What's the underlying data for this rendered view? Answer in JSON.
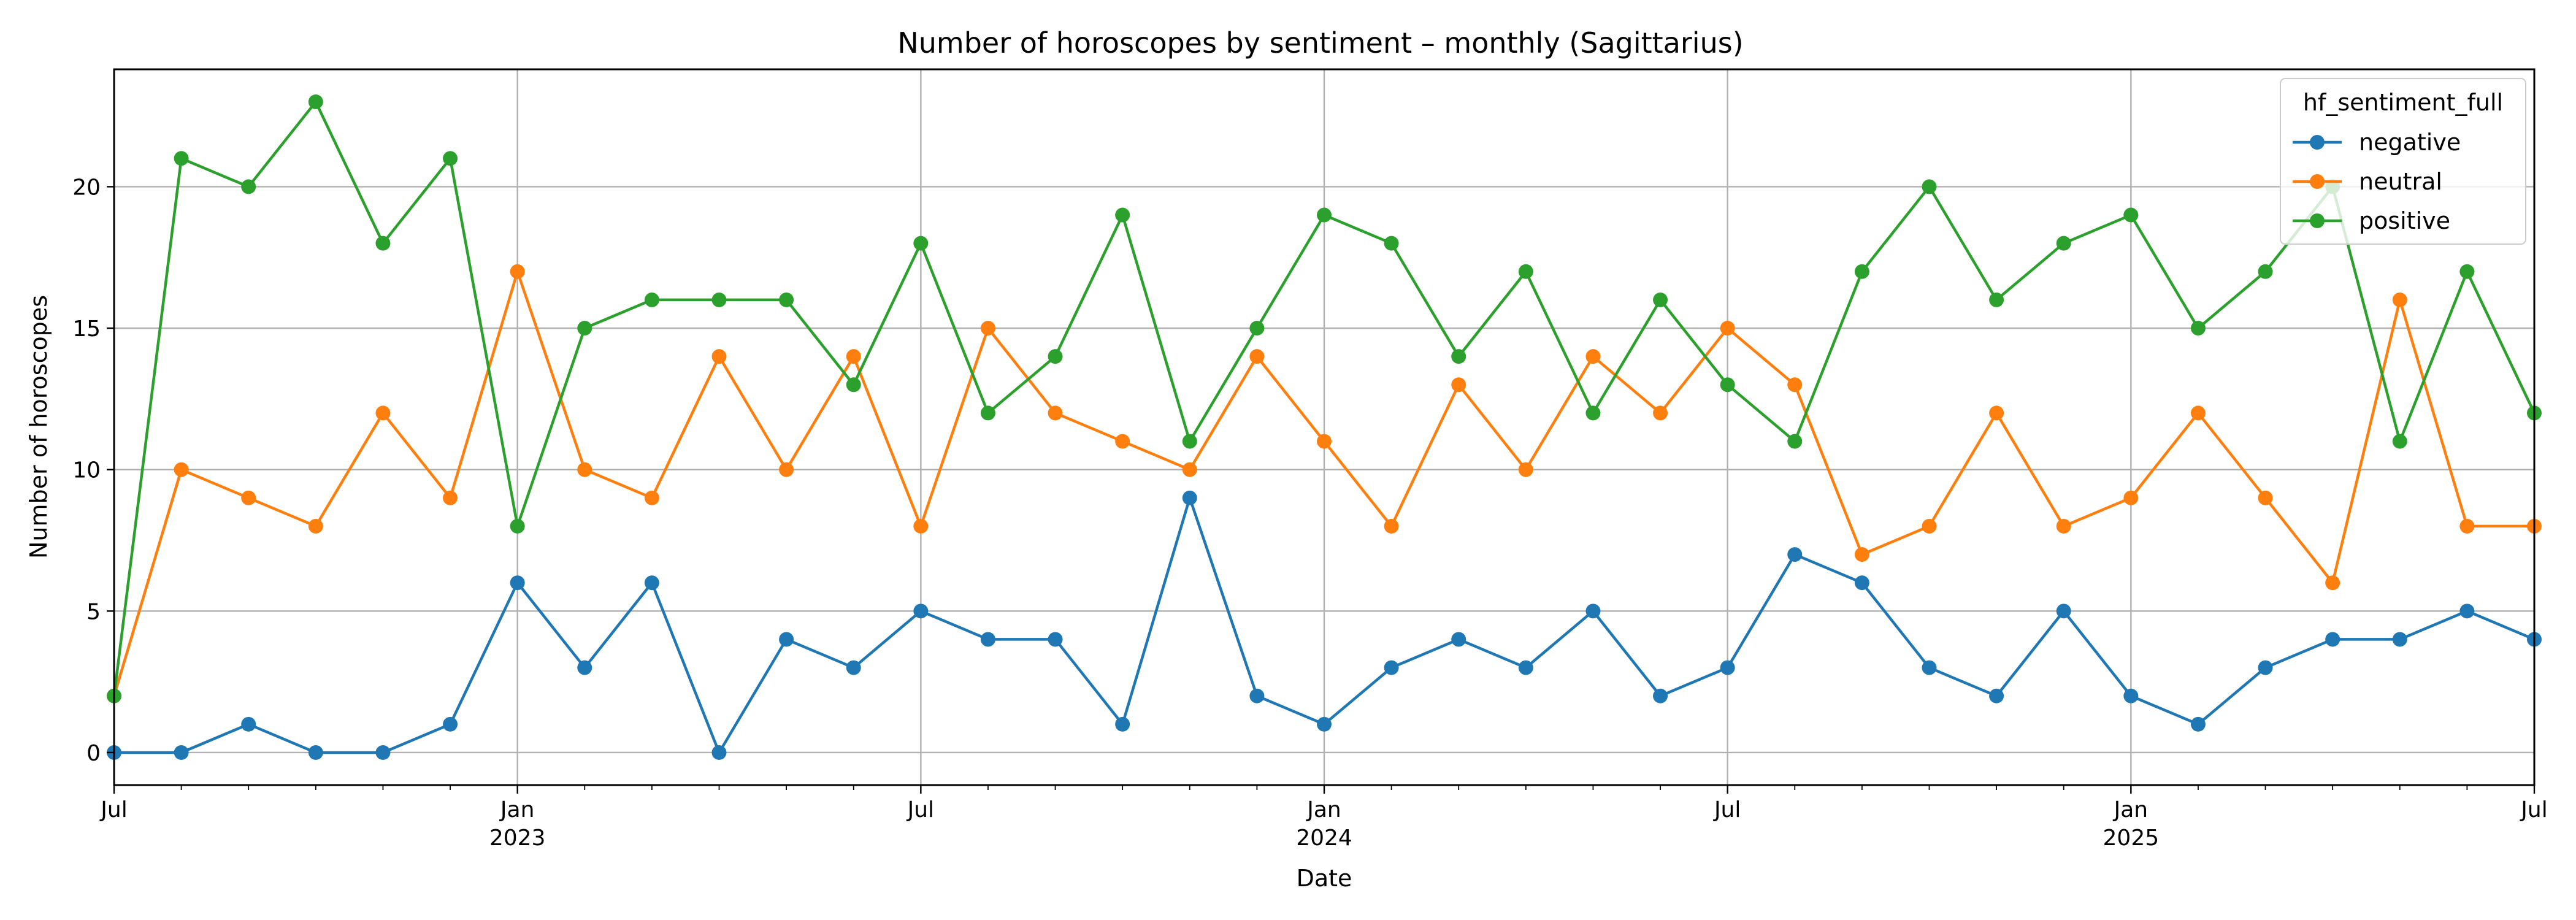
{
  "chart_data": {
    "type": "line",
    "title": "Number of horoscopes by sentiment – monthly (Sagittarius)",
    "xlabel": "Date",
    "ylabel": "Number of horoscopes",
    "x": [
      "2022-07",
      "2022-08",
      "2022-09",
      "2022-10",
      "2022-11",
      "2022-12",
      "2023-01",
      "2023-02",
      "2023-03",
      "2023-04",
      "2023-05",
      "2023-06",
      "2023-07",
      "2023-08",
      "2023-09",
      "2023-10",
      "2023-11",
      "2023-12",
      "2024-01",
      "2024-02",
      "2024-03",
      "2024-04",
      "2024-05",
      "2024-06",
      "2024-07",
      "2024-08",
      "2024-09",
      "2024-10",
      "2024-11",
      "2024-12",
      "2025-01",
      "2025-02",
      "2025-03",
      "2025-04",
      "2025-05",
      "2025-06",
      "2025-07"
    ],
    "xlim": [
      "2022-07",
      "2025-07"
    ],
    "ylim": [
      -1.15,
      24.15
    ],
    "yticks": [
      0,
      5,
      10,
      15,
      20
    ],
    "xtick_labels": [
      {
        "x": "2022-07",
        "month": "Jul",
        "year": ""
      },
      {
        "x": "2023-01",
        "month": "Jan",
        "year": "2023"
      },
      {
        "x": "2023-07",
        "month": "Jul",
        "year": ""
      },
      {
        "x": "2024-01",
        "month": "Jan",
        "year": "2024"
      },
      {
        "x": "2024-07",
        "month": "Jul",
        "year": ""
      },
      {
        "x": "2025-01",
        "month": "Jan",
        "year": "2025"
      },
      {
        "x": "2025-07",
        "month": "Jul",
        "year": ""
      }
    ],
    "grid": true,
    "legend": {
      "title": "hf_sentiment_full",
      "position": "top-right"
    },
    "series": [
      {
        "name": "negative",
        "color": "#1f77b4",
        "values": [
          0,
          0,
          1,
          0,
          0,
          1,
          6,
          3,
          6,
          0,
          4,
          3,
          5,
          4,
          4,
          1,
          9,
          2,
          1,
          3,
          4,
          3,
          5,
          2,
          3,
          7,
          6,
          3,
          2,
          5,
          2,
          1,
          3,
          4,
          4,
          5,
          4
        ]
      },
      {
        "name": "neutral",
        "color": "#ff7f0e",
        "values": [
          2,
          10,
          9,
          8,
          12,
          9,
          17,
          10,
          9,
          14,
          10,
          14,
          8,
          15,
          12,
          11,
          10,
          14,
          11,
          8,
          13,
          10,
          14,
          12,
          15,
          13,
          7,
          8,
          12,
          8,
          9,
          12,
          9,
          6,
          16,
          8,
          8
        ]
      },
      {
        "name": "positive",
        "color": "#2ca02c",
        "values": [
          2,
          21,
          20,
          23,
          18,
          21,
          8,
          15,
          16,
          16,
          16,
          13,
          18,
          12,
          14,
          19,
          11,
          15,
          19,
          18,
          14,
          17,
          12,
          16,
          13,
          11,
          17,
          20,
          16,
          18,
          19,
          15,
          17,
          20,
          11,
          17,
          12
        ]
      }
    ]
  }
}
